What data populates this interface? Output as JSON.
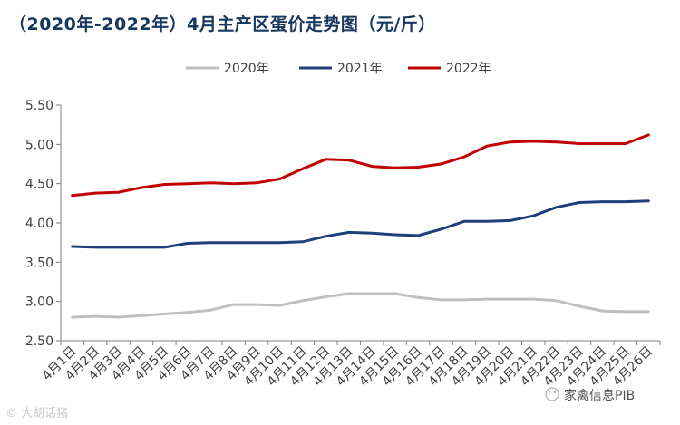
{
  "chart_data": {
    "type": "line",
    "title": "（2020年-2022年）4月主产区蛋价走势图（元/斤）",
    "xlabel": "",
    "ylabel": "",
    "x": [
      "4月1日",
      "4月2日",
      "4月3日",
      "4月4日",
      "4月5日",
      "4月6日",
      "4月7日",
      "4月8日",
      "4月9日",
      "4月10日",
      "4月11日",
      "4月12日",
      "4月13日",
      "4月14日",
      "4月15日",
      "4月16日",
      "4月17日",
      "4月18日",
      "4月19日",
      "4月20日",
      "4月21日",
      "4月22日",
      "4月23日",
      "4月24日",
      "4月25日",
      "4月26日"
    ],
    "ylim": [
      2.5,
      5.5
    ],
    "yticks": [
      "2.50",
      "3.00",
      "3.50",
      "4.00",
      "4.50",
      "5.00",
      "5.50"
    ],
    "grid": false,
    "legend_position": "top-center",
    "series": [
      {
        "name": "2020年",
        "color": "#bfbfbf",
        "values": [
          2.8,
          2.81,
          2.8,
          2.82,
          2.84,
          2.86,
          2.89,
          2.96,
          2.96,
          2.95,
          3.01,
          3.06,
          3.1,
          3.1,
          3.1,
          3.05,
          3.02,
          3.02,
          3.03,
          3.03,
          3.03,
          3.01,
          2.94,
          2.88,
          2.87,
          2.87
        ]
      },
      {
        "name": "2021年",
        "color": "#1f3f7a",
        "values": [
          3.7,
          3.69,
          3.69,
          3.69,
          3.69,
          3.74,
          3.75,
          3.75,
          3.75,
          3.75,
          3.76,
          3.83,
          3.88,
          3.87,
          3.85,
          3.84,
          3.92,
          4.02,
          4.02,
          4.03,
          4.09,
          4.2,
          4.26,
          4.27,
          4.27,
          4.28
        ]
      },
      {
        "name": "2022年",
        "color": "#c00000",
        "values": [
          4.35,
          4.38,
          4.39,
          4.45,
          4.49,
          4.5,
          4.51,
          4.5,
          4.51,
          4.56,
          4.69,
          4.81,
          4.8,
          4.72,
          4.7,
          4.71,
          4.75,
          4.84,
          4.98,
          5.03,
          5.04,
          5.03,
          5.01,
          5.01,
          5.01,
          5.12
        ]
      }
    ]
  },
  "watermarks": {
    "left": "© 大胡话猪",
    "right": "家禽信息PIB"
  }
}
